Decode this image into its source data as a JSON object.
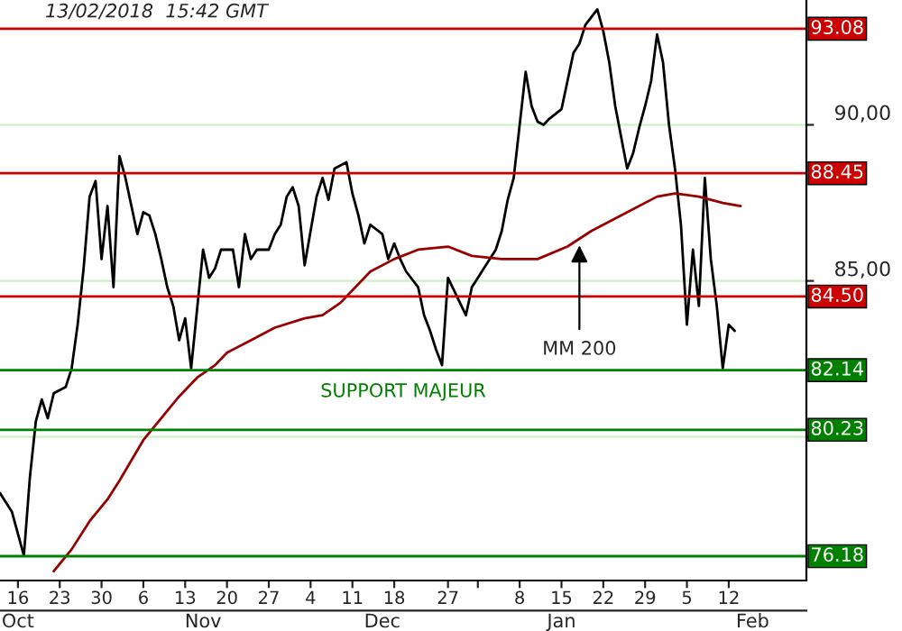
{
  "chart_data": {
    "type": "line",
    "title": "13/02/2018  15:42 GMT",
    "series": [
      {
        "color": "#000000",
        "x": [
          "2017-10-13",
          "2017-10-15",
          "2017-10-17",
          "2017-10-18",
          "2017-10-19",
          "2017-10-20",
          "2017-10-21",
          "2017-10-22",
          "2017-10-24",
          "2017-10-25",
          "2017-10-26",
          "2017-10-27",
          "2017-10-28",
          "2017-10-29",
          "2017-10-30",
          "2017-10-31",
          "2017-11-01",
          "2017-11-02",
          "2017-11-03",
          "2017-11-04",
          "2017-11-05",
          "2017-11-06",
          "2017-11-07",
          "2017-11-08",
          "2017-11-09",
          "2017-11-10",
          "2017-11-11",
          "2017-11-12",
          "2017-11-13",
          "2017-11-14",
          "2017-11-16",
          "2017-11-17",
          "2017-11-18",
          "2017-11-19",
          "2017-11-21",
          "2017-11-22",
          "2017-11-23",
          "2017-11-24",
          "2017-11-25",
          "2017-11-27",
          "2017-11-28",
          "2017-11-29",
          "2017-11-30",
          "2017-12-01",
          "2017-12-02",
          "2017-12-03",
          "2017-12-05",
          "2017-12-06",
          "2017-12-07",
          "2017-12-08",
          "2017-12-10",
          "2017-12-11",
          "2017-12-12",
          "2017-12-13",
          "2017-12-14",
          "2017-12-16",
          "2017-12-17",
          "2017-12-18",
          "2017-12-19",
          "2017-12-20",
          "2017-12-22",
          "2017-12-23",
          "2017-12-24",
          "2017-12-25",
          "2017-12-26",
          "2017-12-27",
          "2017-12-29",
          "2017-12-30",
          "2017-12-31",
          "2018-01-01",
          "2018-01-02",
          "2018-01-04",
          "2018-01-05",
          "2018-01-06",
          "2018-01-07",
          "2018-01-08",
          "2018-01-09",
          "2018-01-10",
          "2018-01-11",
          "2018-01-12",
          "2018-01-13",
          "2018-01-15",
          "2018-01-16",
          "2018-01-17",
          "2018-01-18",
          "2018-01-19",
          "2018-01-21",
          "2018-01-22",
          "2018-01-23",
          "2018-01-24",
          "2018-01-26",
          "2018-01-27",
          "2018-01-28",
          "2018-01-29",
          "2018-01-30",
          "2018-01-31",
          "2018-02-01",
          "2018-02-02",
          "2018-02-03",
          "2018-02-04",
          "2018-02-05",
          "2018-02-06",
          "2018-02-07",
          "2018-02-08",
          "2018-02-09",
          "2018-02-10",
          "2018-02-11",
          "2018-02-12",
          "2018-02-13"
        ],
        "values": [
          78.2,
          77.6,
          76.2,
          78.7,
          80.5,
          81.2,
          80.6,
          81.4,
          81.6,
          82.2,
          83.6,
          85.4,
          87.7,
          88.2,
          85.7,
          87.4,
          84.8,
          89.0,
          88.3,
          87.4,
          86.5,
          87.2,
          87.1,
          86.5,
          85.7,
          84.8,
          84.2,
          83.1,
          83.8,
          82.2,
          86.0,
          85.1,
          85.4,
          86.0,
          86.0,
          84.8,
          86.5,
          85.7,
          86.0,
          86.0,
          86.5,
          86.8,
          87.7,
          88.0,
          87.4,
          85.5,
          87.7,
          88.3,
          87.6,
          88.6,
          88.8,
          87.8,
          87.1,
          86.2,
          86.8,
          86.5,
          85.7,
          86.2,
          85.7,
          85.3,
          84.8,
          83.9,
          83.4,
          82.8,
          82.3,
          85.1,
          84.3,
          83.9,
          84.8,
          85.1,
          85.4,
          86.0,
          86.6,
          87.6,
          88.3,
          90.0,
          91.7,
          90.6,
          90.1,
          90.0,
          90.2,
          90.5,
          91.4,
          92.3,
          92.6,
          93.2,
          93.7,
          93.0,
          92.0,
          90.6,
          88.6,
          89.1,
          89.9,
          90.6,
          91.4,
          92.9,
          92.0,
          90.0,
          88.6,
          86.8,
          83.6,
          86.0,
          84.2,
          88.3,
          85.7,
          84.2,
          82.2,
          83.6,
          83.4
        ]
      },
      {
        "color": "#990000",
        "x": [
          "2017-10-22",
          "2017-10-25",
          "2017-10-28",
          "2017-10-31",
          "2017-11-02",
          "2017-11-06",
          "2017-11-09",
          "2017-11-12",
          "2017-11-15",
          "2017-11-18",
          "2017-11-20",
          "2017-11-24",
          "2017-11-28",
          "2017-12-03",
          "2017-12-06",
          "2017-12-09",
          "2017-12-14",
          "2017-12-18",
          "2017-12-22",
          "2017-12-27",
          "2017-12-31",
          "2018-01-05",
          "2018-01-11",
          "2018-01-16",
          "2018-01-20",
          "2018-01-27",
          "2018-01-31",
          "2018-02-03",
          "2018-02-07",
          "2018-02-11",
          "2018-02-14"
        ],
        "values": [
          75.7,
          76.4,
          77.3,
          78.0,
          78.6,
          79.9,
          80.6,
          81.3,
          81.9,
          82.3,
          82.7,
          83.1,
          83.5,
          83.8,
          83.9,
          84.3,
          85.3,
          85.7,
          86.0,
          86.1,
          85.8,
          85.7,
          85.7,
          86.1,
          86.6,
          87.3,
          87.7,
          87.8,
          87.7,
          87.5,
          87.4
        ]
      }
    ],
    "xlim": [
      "2017-10-13",
      "2018-02-25"
    ],
    "xticks": [
      {
        "value": "2017-10-16",
        "label": "16"
      },
      {
        "value": "2017-10-23",
        "label": "23"
      },
      {
        "value": "2017-10-30",
        "label": "30"
      },
      {
        "value": "2017-11-06",
        "label": "6"
      },
      {
        "value": "2017-11-13",
        "label": "13"
      },
      {
        "value": "2017-11-20",
        "label": "20"
      },
      {
        "value": "2017-11-27",
        "label": "27"
      },
      {
        "value": "2017-12-04",
        "label": "4"
      },
      {
        "value": "2017-12-11",
        "label": "11"
      },
      {
        "value": "2017-12-18",
        "label": "18"
      },
      {
        "value": "2017-12-27",
        "label": "27"
      },
      {
        "value": "2018-01-01",
        "label": null
      },
      {
        "value": "2018-01-08",
        "label": "8"
      },
      {
        "value": "2018-01-15",
        "label": "15"
      },
      {
        "value": "2018-01-22",
        "label": "22"
      },
      {
        "value": "2018-01-29",
        "label": "29"
      },
      {
        "value": "2018-02-05",
        "label": "5"
      },
      {
        "value": "2018-02-12",
        "label": "12"
      }
    ],
    "x2lim": [
      "2017-10-13",
      "2018-02-25"
    ],
    "x2ticks": [
      {
        "value": "2017-10-16",
        "label": "Oct"
      },
      {
        "value": "2017-11-16",
        "label": "Nov"
      },
      {
        "value": "2017-12-16",
        "label": "Dec"
      },
      {
        "value": "2018-01-15",
        "label": "Jan"
      },
      {
        "value": "2018-02-16",
        "label": "Feb"
      }
    ],
    "ylim": [
      75.4,
      94.0
    ],
    "yticks": [
      {
        "value": 80,
        "label": null
      },
      {
        "value": 85,
        "label": "85,00"
      },
      {
        "value": 90,
        "label": "90,00"
      }
    ],
    "grid": "y",
    "ref_lines": [
      {
        "axis": "y",
        "value": 93.08,
        "label": "93.08",
        "color": "#cc0000"
      },
      {
        "axis": "y",
        "value": 88.45,
        "label": "88.45",
        "color": "#cc0000"
      },
      {
        "axis": "y",
        "value": 84.5,
        "label": "84.50",
        "color": "#cc0000"
      },
      {
        "axis": "y",
        "value": 82.14,
        "label": "82.14",
        "color": "#008000"
      },
      {
        "axis": "y",
        "value": 80.23,
        "label": "80.23",
        "color": "#008000"
      },
      {
        "axis": "y",
        "value": 76.18,
        "label": "76.18",
        "color": "#008000"
      }
    ],
    "annotations": [
      {
        "text": "MM 200",
        "x": "2018-01-18",
        "y": 86.3
      },
      "SUPPORT MAJEUR"
    ]
  }
}
